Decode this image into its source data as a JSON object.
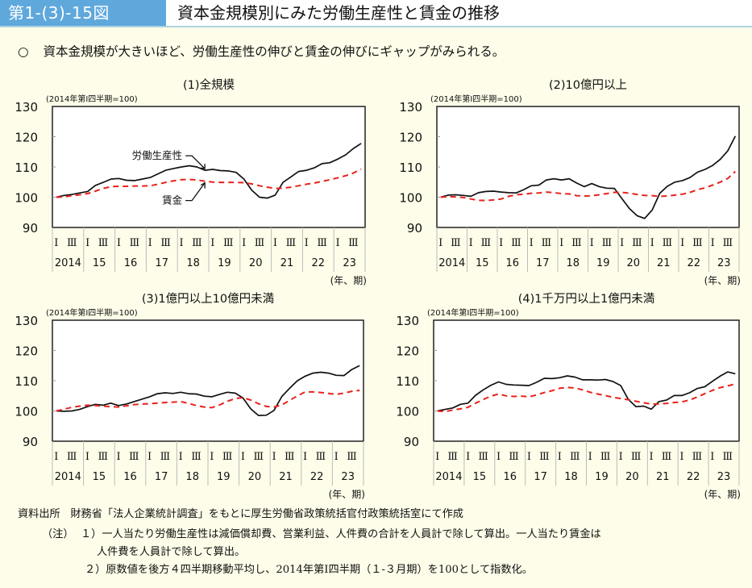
{
  "header": {
    "figure_number": "第1-(3)-15図",
    "title": "資本金規模別にみた労働生産性と賃金の推移"
  },
  "lead": {
    "bullet": "○",
    "text": "資本金規模が大きいほど、労働生産性の伸びと賃金の伸びにギャップがみられる。"
  },
  "colors": {
    "header_accent": "#5fa8dc",
    "productivity": "#111111",
    "wage": "#e8231c",
    "background": "#fefde9"
  },
  "chart_data": [
    {
      "type": "line",
      "title": "(1)全規模",
      "unit_note": "(2014年第Ⅰ四半期=100)",
      "xlabel": "(年、期)",
      "ylim": [
        90,
        130
      ],
      "yticks": [
        90,
        100,
        110,
        120,
        130
      ],
      "quarter_labels": [
        "Ⅰ",
        "Ⅲ"
      ],
      "year_labels": [
        "2014",
        "15",
        "16",
        "17",
        "18",
        "19",
        "20",
        "21",
        "22",
        "23"
      ],
      "annotations": [
        {
          "text": "労働生産性",
          "series": "労働生産性"
        },
        {
          "text": "賃金",
          "series": "賃金"
        }
      ],
      "series": [
        {
          "name": "労働生産性",
          "style": "solid",
          "values": [
            100,
            100.6,
            100.9,
            101.4,
            101.9,
            103.9,
            104.9,
            106.0,
            106.2,
            105.6,
            105.5,
            106.0,
            106.5,
            107.7,
            108.9,
            109.5,
            110.0,
            110.4,
            110.0,
            108.9,
            109.2,
            108.8,
            108.7,
            108.2,
            106.0,
            102.3,
            100.0,
            99.7,
            100.7,
            104.9,
            106.7,
            108.5,
            108.9,
            109.7,
            111.1,
            111.4,
            112.6,
            114.0,
            116.1,
            117.8
          ]
        },
        {
          "name": "賃金",
          "style": "dashed",
          "values": [
            100,
            100.1,
            100.5,
            100.8,
            101.2,
            102.0,
            102.9,
            103.5,
            103.6,
            103.6,
            103.7,
            103.7,
            103.8,
            104.3,
            104.9,
            105.4,
            105.8,
            105.9,
            105.7,
            105.3,
            105.0,
            104.9,
            104.9,
            104.9,
            104.8,
            104.4,
            103.8,
            103.3,
            102.9,
            103.0,
            103.3,
            103.8,
            104.3,
            104.7,
            105.2,
            105.8,
            106.4,
            107.1,
            108.0,
            109.3
          ]
        }
      ]
    },
    {
      "type": "line",
      "title": "(2)10億円以上",
      "unit_note": "(2014年第Ⅰ四半期=100)",
      "xlabel": "(年、期)",
      "ylim": [
        90,
        130
      ],
      "yticks": [
        90,
        100,
        110,
        120,
        130
      ],
      "quarter_labels": [
        "Ⅰ",
        "Ⅲ"
      ],
      "year_labels": [
        "2014",
        "15",
        "16",
        "17",
        "18",
        "19",
        "20",
        "21",
        "22",
        "23"
      ],
      "series": [
        {
          "name": "労働生産性",
          "style": "solid",
          "values": [
            100,
            100.7,
            100.8,
            100.6,
            100.3,
            101.5,
            101.9,
            102.0,
            101.7,
            101.5,
            101.4,
            102.5,
            103.8,
            104.0,
            105.7,
            106.1,
            105.7,
            106.1,
            104.7,
            103.5,
            104.5,
            103.5,
            103.0,
            102.9,
            99.5,
            96.2,
            93.9,
            93.0,
            95.8,
            101.3,
            103.6,
            105.0,
            105.5,
            106.5,
            108.3,
            109.2,
            110.5,
            112.5,
            115.3,
            120.2
          ]
        },
        {
          "name": "賃金",
          "style": "dashed",
          "values": [
            100,
            100.2,
            100.1,
            99.9,
            99.4,
            99.0,
            98.9,
            99.1,
            99.4,
            100.3,
            100.8,
            101.0,
            101.3,
            101.4,
            101.7,
            101.5,
            101.2,
            101.1,
            100.5,
            100.4,
            100.5,
            100.8,
            101.2,
            101.6,
            101.6,
            101.3,
            100.9,
            100.6,
            100.5,
            100.3,
            100.4,
            100.7,
            101.0,
            101.6,
            102.5,
            103.1,
            104.0,
            105.0,
            106.2,
            108.5
          ]
        }
      ]
    },
    {
      "type": "line",
      "title": "(3)1億円以上10億円未満",
      "unit_note": "(2014年第Ⅰ四半期=100)",
      "xlabel": "(年、期)",
      "ylim": [
        90,
        130
      ],
      "yticks": [
        90,
        100,
        110,
        120,
        130
      ],
      "quarter_labels": [
        "Ⅰ",
        "Ⅲ"
      ],
      "year_labels": [
        "2014",
        "15",
        "16",
        "17",
        "18",
        "19",
        "20",
        "21",
        "22",
        "23"
      ],
      "series": [
        {
          "name": "労働生産性",
          "style": "solid",
          "values": [
            100,
            99.9,
            100.0,
            100.5,
            101.4,
            102.2,
            101.9,
            102.6,
            101.8,
            102.3,
            103.1,
            103.9,
            104.7,
            105.7,
            106.0,
            105.8,
            106.2,
            105.7,
            105.6,
            104.9,
            104.7,
            105.5,
            106.2,
            105.9,
            104.3,
            100.7,
            98.5,
            98.6,
            100.2,
            104.8,
            107.5,
            110.0,
            111.5,
            112.5,
            112.8,
            112.5,
            111.8,
            111.7,
            113.7,
            115.0
          ]
        },
        {
          "name": "賃金",
          "style": "dashed",
          "values": [
            100,
            100.6,
            101.2,
            101.6,
            101.9,
            101.8,
            101.6,
            101.4,
            101.3,
            101.7,
            102.1,
            102.3,
            102.4,
            102.6,
            102.8,
            102.9,
            103.1,
            102.5,
            101.8,
            101.3,
            101.1,
            102.0,
            103.2,
            104.1,
            104.4,
            103.6,
            102.4,
            101.5,
            101.3,
            102.0,
            103.5,
            105.0,
            106.3,
            106.3,
            106.1,
            105.8,
            105.5,
            105.9,
            106.5,
            106.8
          ]
        }
      ]
    },
    {
      "type": "line",
      "title": "(4)1千万円以上1億円未満",
      "unit_note": "(2014年第Ⅰ四半期=100)",
      "xlabel": "(年、期)",
      "ylim": [
        90,
        130
      ],
      "yticks": [
        90,
        100,
        110,
        120,
        130
      ],
      "quarter_labels": [
        "Ⅰ",
        "Ⅲ"
      ],
      "year_labels": [
        "2014",
        "15",
        "16",
        "17",
        "18",
        "19",
        "20",
        "21",
        "22",
        "23"
      ],
      "series": [
        {
          "name": "労働生産性",
          "style": "solid",
          "values": [
            100,
            100.5,
            101.0,
            102.2,
            102.6,
            105.2,
            107.0,
            108.5,
            109.6,
            108.8,
            108.6,
            108.5,
            108.4,
            109.5,
            110.8,
            110.7,
            111.0,
            111.6,
            111.2,
            110.3,
            110.3,
            110.2,
            110.4,
            109.7,
            108.4,
            103.8,
            101.4,
            101.6,
            100.6,
            103.1,
            103.6,
            105.1,
            105.1,
            106.0,
            107.4,
            108.0,
            109.8,
            111.5,
            112.9,
            112.3
          ]
        },
        {
          "name": "賃金",
          "style": "dashed",
          "values": [
            100,
            99.8,
            100.3,
            100.7,
            101.2,
            102.6,
            103.8,
            104.9,
            105.6,
            105.0,
            104.8,
            104.9,
            104.7,
            105.3,
            106.1,
            106.7,
            107.5,
            107.8,
            107.6,
            107.0,
            106.2,
            105.6,
            105.1,
            104.5,
            104.1,
            103.7,
            103.2,
            102.7,
            102.3,
            102.3,
            102.5,
            102.8,
            103.0,
            103.6,
            104.6,
            105.7,
            106.8,
            107.7,
            108.3,
            108.9
          ]
        }
      ]
    }
  ],
  "footnotes": {
    "source_label": "資料出所",
    "source_text": "財務省「法人企業統計調査」をもとに厚生労働省政策統括官付政策統括室にて作成",
    "note_label": "（注）",
    "notes": [
      "１）一人当たり労働生産性は減価償却費、営業利益、人件費の合計を人員計で除して算出。一人当たり賃金は",
      "人件費を人員計で除して算出。",
      "２）原数値を後方４四半期移動平均し、2014年第Ⅰ四半期（１-３月期）を100として指数化。"
    ]
  }
}
